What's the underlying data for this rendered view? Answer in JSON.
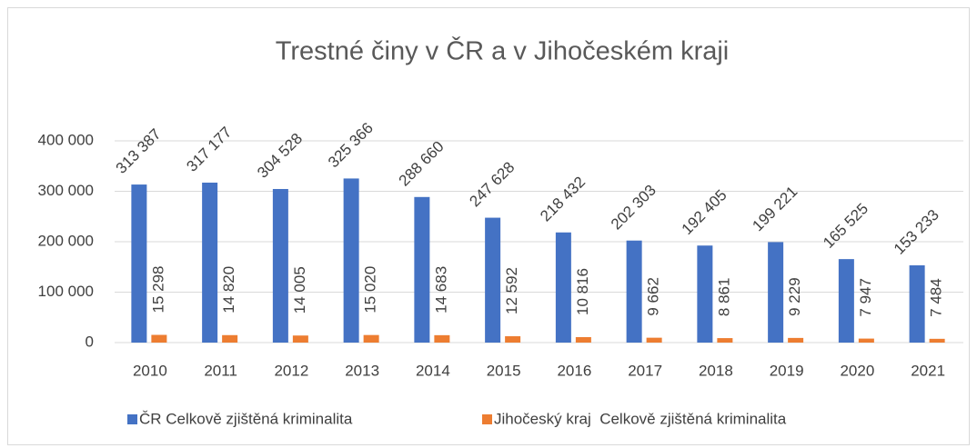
{
  "chart_data": {
    "type": "bar",
    "title": "Trestné činy v ČR a v Jihočeském kraji",
    "categories": [
      "2010",
      "2011",
      "2012",
      "2013",
      "2014",
      "2015",
      "2016",
      "2017",
      "2018",
      "2019",
      "2020",
      "2021"
    ],
    "series": [
      {
        "name": "ČR Celkově zjištěná kriminalita",
        "color": "#4472c4",
        "values": [
          313387,
          317177,
          304528,
          325366,
          288660,
          247628,
          218432,
          202303,
          192405,
          199221,
          165525,
          153233
        ],
        "value_labels": [
          "313 387",
          "317 177",
          "304 528",
          "325 366",
          "288 660",
          "247 628",
          "218 432",
          "202 303",
          "192 405",
          "199 221",
          "165 525",
          "153 233"
        ]
      },
      {
        "name": "Jihočeský kraj  Celkově zjištěná kriminalita",
        "color": "#ed7d31",
        "values": [
          15298,
          14820,
          14005,
          15020,
          14683,
          12592,
          10816,
          9662,
          8861,
          9229,
          7947,
          7484
        ],
        "value_labels": [
          "15 298",
          "14 820",
          "14 005",
          "15 020",
          "14 683",
          "12 592",
          "10 816",
          "9 662",
          "8 861",
          "9 229",
          "7 947",
          "7 484"
        ]
      }
    ],
    "ylim": [
      0,
      400000
    ],
    "yticks": [
      0,
      {
        "value": 100000,
        "label": "100 000"
      },
      {
        "value": 200000,
        "label": "200 000"
      },
      {
        "value": 300000,
        "label": "300 000"
      },
      {
        "value": 400000,
        "label": "400 000"
      }
    ],
    "grid": true,
    "legend": "bottom"
  }
}
